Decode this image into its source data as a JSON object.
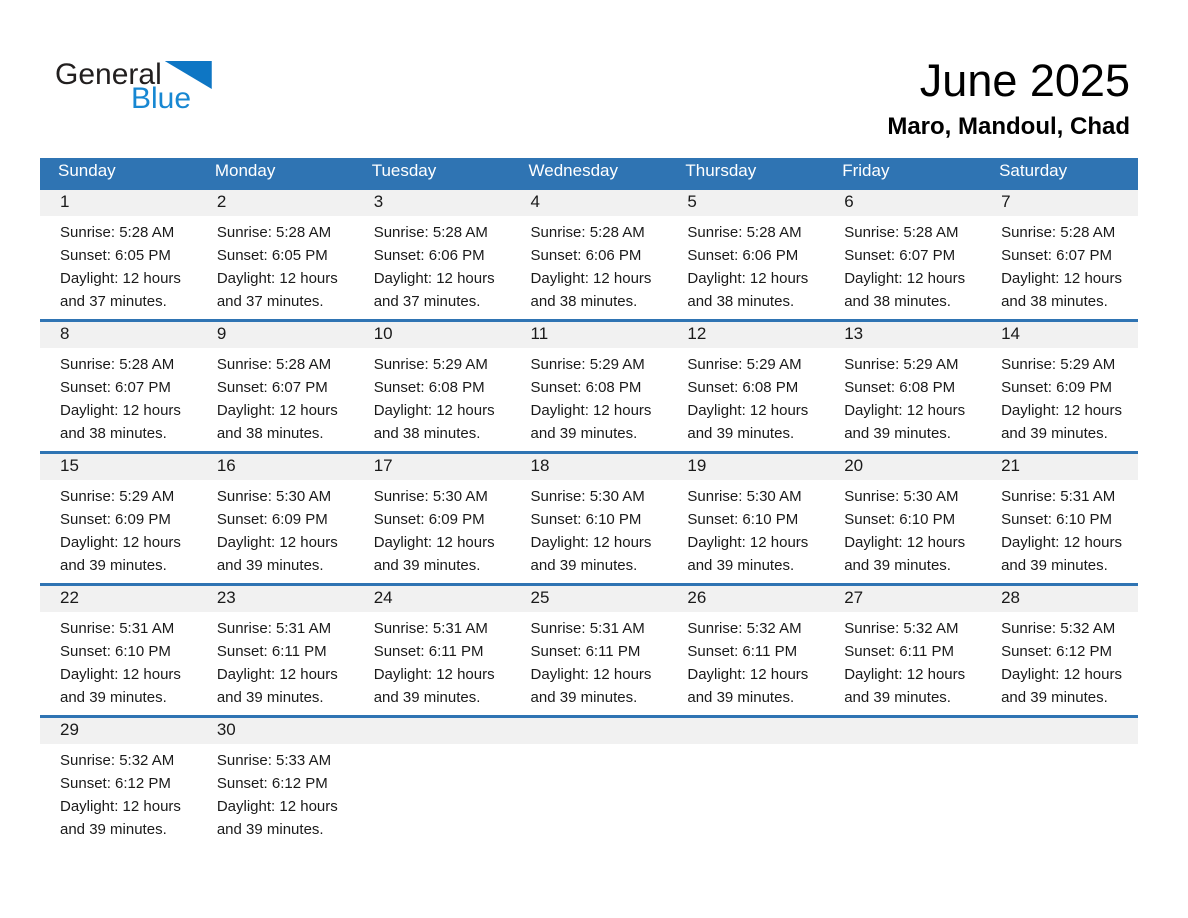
{
  "logo": {
    "general": "General",
    "blue": "Blue"
  },
  "header": {
    "title": "June 2025",
    "subtitle": "Maro, Mandoul, Chad"
  },
  "colors": {
    "header_blue": "#2f74b3",
    "row_line_blue": "#2f74b3",
    "day_strip_gray": "#f1f1f1",
    "logo_text_blue": "#1787d2",
    "logo_triangle_blue": "#0e76c4",
    "weekday_text": "#ffffff",
    "body_text": "#1a1a1a"
  },
  "weekdays": [
    "Sunday",
    "Monday",
    "Tuesday",
    "Wednesday",
    "Thursday",
    "Friday",
    "Saturday"
  ],
  "weeks": [
    [
      {
        "day": "1",
        "sunrise": "Sunrise: 5:28 AM",
        "sunset": "Sunset: 6:05 PM",
        "daylight1": "Daylight: 12 hours",
        "daylight2": "and 37 minutes."
      },
      {
        "day": "2",
        "sunrise": "Sunrise: 5:28 AM",
        "sunset": "Sunset: 6:05 PM",
        "daylight1": "Daylight: 12 hours",
        "daylight2": "and 37 minutes."
      },
      {
        "day": "3",
        "sunrise": "Sunrise: 5:28 AM",
        "sunset": "Sunset: 6:06 PM",
        "daylight1": "Daylight: 12 hours",
        "daylight2": "and 37 minutes."
      },
      {
        "day": "4",
        "sunrise": "Sunrise: 5:28 AM",
        "sunset": "Sunset: 6:06 PM",
        "daylight1": "Daylight: 12 hours",
        "daylight2": "and 38 minutes."
      },
      {
        "day": "5",
        "sunrise": "Sunrise: 5:28 AM",
        "sunset": "Sunset: 6:06 PM",
        "daylight1": "Daylight: 12 hours",
        "daylight2": "and 38 minutes."
      },
      {
        "day": "6",
        "sunrise": "Sunrise: 5:28 AM",
        "sunset": "Sunset: 6:07 PM",
        "daylight1": "Daylight: 12 hours",
        "daylight2": "and 38 minutes."
      },
      {
        "day": "7",
        "sunrise": "Sunrise: 5:28 AM",
        "sunset": "Sunset: 6:07 PM",
        "daylight1": "Daylight: 12 hours",
        "daylight2": "and 38 minutes."
      }
    ],
    [
      {
        "day": "8",
        "sunrise": "Sunrise: 5:28 AM",
        "sunset": "Sunset: 6:07 PM",
        "daylight1": "Daylight: 12 hours",
        "daylight2": "and 38 minutes."
      },
      {
        "day": "9",
        "sunrise": "Sunrise: 5:28 AM",
        "sunset": "Sunset: 6:07 PM",
        "daylight1": "Daylight: 12 hours",
        "daylight2": "and 38 minutes."
      },
      {
        "day": "10",
        "sunrise": "Sunrise: 5:29 AM",
        "sunset": "Sunset: 6:08 PM",
        "daylight1": "Daylight: 12 hours",
        "daylight2": "and 38 minutes."
      },
      {
        "day": "11",
        "sunrise": "Sunrise: 5:29 AM",
        "sunset": "Sunset: 6:08 PM",
        "daylight1": "Daylight: 12 hours",
        "daylight2": "and 39 minutes."
      },
      {
        "day": "12",
        "sunrise": "Sunrise: 5:29 AM",
        "sunset": "Sunset: 6:08 PM",
        "daylight1": "Daylight: 12 hours",
        "daylight2": "and 39 minutes."
      },
      {
        "day": "13",
        "sunrise": "Sunrise: 5:29 AM",
        "sunset": "Sunset: 6:08 PM",
        "daylight1": "Daylight: 12 hours",
        "daylight2": "and 39 minutes."
      },
      {
        "day": "14",
        "sunrise": "Sunrise: 5:29 AM",
        "sunset": "Sunset: 6:09 PM",
        "daylight1": "Daylight: 12 hours",
        "daylight2": "and 39 minutes."
      }
    ],
    [
      {
        "day": "15",
        "sunrise": "Sunrise: 5:29 AM",
        "sunset": "Sunset: 6:09 PM",
        "daylight1": "Daylight: 12 hours",
        "daylight2": "and 39 minutes."
      },
      {
        "day": "16",
        "sunrise": "Sunrise: 5:30 AM",
        "sunset": "Sunset: 6:09 PM",
        "daylight1": "Daylight: 12 hours",
        "daylight2": "and 39 minutes."
      },
      {
        "day": "17",
        "sunrise": "Sunrise: 5:30 AM",
        "sunset": "Sunset: 6:09 PM",
        "daylight1": "Daylight: 12 hours",
        "daylight2": "and 39 minutes."
      },
      {
        "day": "18",
        "sunrise": "Sunrise: 5:30 AM",
        "sunset": "Sunset: 6:10 PM",
        "daylight1": "Daylight: 12 hours",
        "daylight2": "and 39 minutes."
      },
      {
        "day": "19",
        "sunrise": "Sunrise: 5:30 AM",
        "sunset": "Sunset: 6:10 PM",
        "daylight1": "Daylight: 12 hours",
        "daylight2": "and 39 minutes."
      },
      {
        "day": "20",
        "sunrise": "Sunrise: 5:30 AM",
        "sunset": "Sunset: 6:10 PM",
        "daylight1": "Daylight: 12 hours",
        "daylight2": "and 39 minutes."
      },
      {
        "day": "21",
        "sunrise": "Sunrise: 5:31 AM",
        "sunset": "Sunset: 6:10 PM",
        "daylight1": "Daylight: 12 hours",
        "daylight2": "and 39 minutes."
      }
    ],
    [
      {
        "day": "22",
        "sunrise": "Sunrise: 5:31 AM",
        "sunset": "Sunset: 6:10 PM",
        "daylight1": "Daylight: 12 hours",
        "daylight2": "and 39 minutes."
      },
      {
        "day": "23",
        "sunrise": "Sunrise: 5:31 AM",
        "sunset": "Sunset: 6:11 PM",
        "daylight1": "Daylight: 12 hours",
        "daylight2": "and 39 minutes."
      },
      {
        "day": "24",
        "sunrise": "Sunrise: 5:31 AM",
        "sunset": "Sunset: 6:11 PM",
        "daylight1": "Daylight: 12 hours",
        "daylight2": "and 39 minutes."
      },
      {
        "day": "25",
        "sunrise": "Sunrise: 5:31 AM",
        "sunset": "Sunset: 6:11 PM",
        "daylight1": "Daylight: 12 hours",
        "daylight2": "and 39 minutes."
      },
      {
        "day": "26",
        "sunrise": "Sunrise: 5:32 AM",
        "sunset": "Sunset: 6:11 PM",
        "daylight1": "Daylight: 12 hours",
        "daylight2": "and 39 minutes."
      },
      {
        "day": "27",
        "sunrise": "Sunrise: 5:32 AM",
        "sunset": "Sunset: 6:11 PM",
        "daylight1": "Daylight: 12 hours",
        "daylight2": "and 39 minutes."
      },
      {
        "day": "28",
        "sunrise": "Sunrise: 5:32 AM",
        "sunset": "Sunset: 6:12 PM",
        "daylight1": "Daylight: 12 hours",
        "daylight2": "and 39 minutes."
      }
    ],
    [
      {
        "day": "29",
        "sunrise": "Sunrise: 5:32 AM",
        "sunset": "Sunset: 6:12 PM",
        "daylight1": "Daylight: 12 hours",
        "daylight2": "and 39 minutes."
      },
      {
        "day": "30",
        "sunrise": "Sunrise: 5:33 AM",
        "sunset": "Sunset: 6:12 PM",
        "daylight1": "Daylight: 12 hours",
        "daylight2": "and 39 minutes."
      },
      {
        "day": ""
      },
      {
        "day": ""
      },
      {
        "day": ""
      },
      {
        "day": ""
      },
      {
        "day": ""
      }
    ]
  ]
}
